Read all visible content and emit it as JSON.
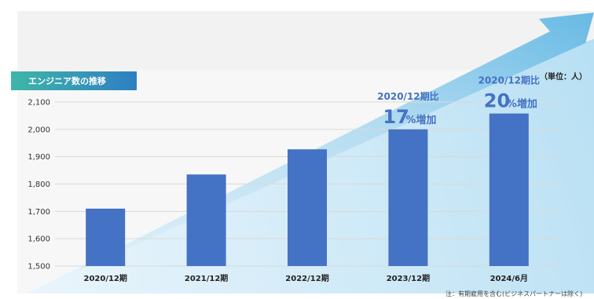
{
  "chart_data": {
    "type": "bar",
    "title": "エンジニア数の推移",
    "unit_label": "（単位：人）",
    "categories": [
      "2020/12期",
      "2021/12期",
      "2022/12期",
      "2023/12期",
      "2024/6月"
    ],
    "values": [
      1710,
      1835,
      1927,
      2000,
      2058
    ],
    "ylim": [
      1500,
      2100
    ],
    "yticks": [
      "1,500",
      "1,600",
      "1,700",
      "1,800",
      "1,900",
      "2,000",
      "2,100"
    ],
    "ytick_values": [
      1500,
      1600,
      1700,
      1800,
      1900,
      2000,
      2100
    ],
    "grid": true,
    "bar_color": "#4472C4",
    "annotations": [
      {
        "label": "2020/12期比",
        "number": "17",
        "suffix": "%増加",
        "category_index": 3
      },
      {
        "label": "2020/12期比",
        "number": "20",
        "suffix": "%増加",
        "category_index": 4
      }
    ]
  },
  "footnote": "注：有期雇用を含む(ビジネスパートナーは除く)",
  "colors": {
    "title_bg_start": "#3FB6A8",
    "title_bg_end": "#2E7FC2",
    "arrow": "#5DB6E0",
    "accent": "#4472C4"
  }
}
